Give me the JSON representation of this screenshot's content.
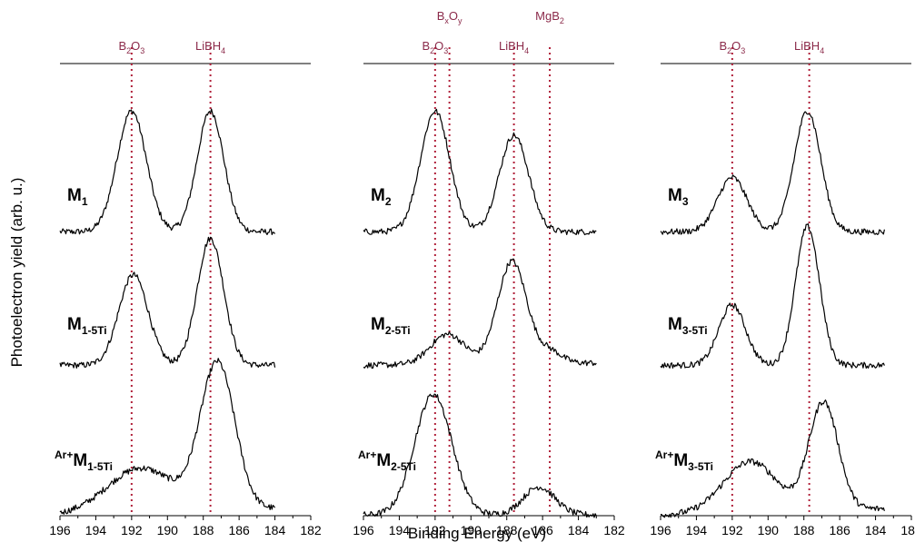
{
  "chart_data": {
    "type": "line",
    "ylabel": "Photoelectron yield (arb. u.)",
    "xlabel": "Binding Energy (eV)",
    "xlim": [
      196,
      182
    ],
    "x_ticks": [
      196,
      194,
      192,
      190,
      188,
      186,
      184,
      182
    ],
    "reference_color": "#b0203a",
    "panels": [
      {
        "x_range": [
          196,
          184
        ],
        "references": [
          {
            "label": "B2O3",
            "base": "B",
            "s1": "2",
            "mid": "O",
            "s2": "3",
            "energy": 192.0
          },
          {
            "label": "LiBH4",
            "base": "LiBH",
            "s1": "4",
            "mid": "",
            "s2": "",
            "energy": 187.6
          }
        ],
        "series": [
          {
            "name": "M1",
            "prefix": "",
            "main": "M",
            "sub": "1",
            "peaks": [
              {
                "e": 192.0,
                "h": 1.0,
                "w": 1.1
              },
              {
                "e": 187.6,
                "h": 1.0,
                "w": 1.0
              }
            ],
            "bg": 0.0
          },
          {
            "name": "M1-5Ti",
            "prefix": "",
            "main": "M",
            "sub": "1-5Ti",
            "peaks": [
              {
                "e": 191.9,
                "h": 0.75,
                "w": 1.1
              },
              {
                "e": 187.6,
                "h": 1.05,
                "w": 1.0
              }
            ],
            "bg": 0.0
          },
          {
            "name": "Ar+M1-5Ti",
            "prefix": "Ar+",
            "main": "M",
            "sub": "1-5Ti",
            "peaks": [
              {
                "e": 191.5,
                "h": 0.35,
                "w": 2.5
              },
              {
                "e": 187.2,
                "h": 1.15,
                "w": 1.3
              }
            ],
            "bg": 0.05
          }
        ]
      },
      {
        "x_range": [
          196,
          183
        ],
        "references": [
          {
            "label": "B2O3",
            "base": "B",
            "s1": "2",
            "mid": "O",
            "s2": "3",
            "energy": 192.0
          },
          {
            "label": "BxOy",
            "base": "B",
            "s1": "x",
            "mid": "O",
            "s2": "y",
            "energy": 191.2
          },
          {
            "label": "LiBH4",
            "base": "LiBH",
            "s1": "4",
            "mid": "",
            "s2": "",
            "energy": 187.6
          },
          {
            "label": "MgB2",
            "base": "MgB",
            "s1": "2",
            "mid": "",
            "s2": "",
            "energy": 185.6
          }
        ],
        "series": [
          {
            "name": "M2",
            "prefix": "",
            "main": "M",
            "sub": "2",
            "peaks": [
              {
                "e": 192.0,
                "h": 1.0,
                "w": 1.1
              },
              {
                "e": 187.6,
                "h": 0.8,
                "w": 1.1
              }
            ],
            "bg": 0.0
          },
          {
            "name": "M2-5Ti",
            "prefix": "",
            "main": "M",
            "sub": "2-5Ti",
            "peaks": [
              {
                "e": 191.3,
                "h": 0.25,
                "w": 1.3
              },
              {
                "e": 187.7,
                "h": 0.85,
                "w": 1.1
              },
              {
                "e": 185.6,
                "h": 0.1,
                "w": 0.9
              }
            ],
            "bg": 0.02
          },
          {
            "name": "Ar+M2-5Ti",
            "prefix": "Ar+",
            "main": "M",
            "sub": "2-5Ti",
            "peaks": [
              {
                "e": 192.1,
                "h": 0.95,
                "w": 1.4
              },
              {
                "e": 186.2,
                "h": 0.22,
                "w": 1.2
              }
            ],
            "bg": 0.0
          }
        ]
      },
      {
        "x_range": [
          196,
          183.5
        ],
        "references": [
          {
            "label": "B2O3",
            "base": "B",
            "s1": "2",
            "mid": "O",
            "s2": "3",
            "energy": 192.0
          },
          {
            "label": "LiBH4",
            "base": "LiBH",
            "s1": "4",
            "mid": "",
            "s2": "",
            "energy": 187.7
          }
        ],
        "series": [
          {
            "name": "M3",
            "prefix": "",
            "main": "M",
            "sub": "3",
            "peaks": [
              {
                "e": 192.0,
                "h": 0.45,
                "w": 1.1
              },
              {
                "e": 187.8,
                "h": 1.0,
                "w": 1.0
              }
            ],
            "bg": 0.0
          },
          {
            "name": "M3-5Ti",
            "prefix": "",
            "main": "M",
            "sub": "3-5Ti",
            "peaks": [
              {
                "e": 192.0,
                "h": 0.5,
                "w": 1.0
              },
              {
                "e": 187.8,
                "h": 1.15,
                "w": 0.9
              }
            ],
            "bg": 0.0
          },
          {
            "name": "Ar+M3-5Ti",
            "prefix": "Ar+",
            "main": "M",
            "sub": "3-5Ti",
            "peaks": [
              {
                "e": 191.0,
                "h": 0.4,
                "w": 2.0
              },
              {
                "e": 186.9,
                "h": 0.85,
                "w": 1.1
              }
            ],
            "bg": 0.05
          }
        ]
      }
    ]
  }
}
